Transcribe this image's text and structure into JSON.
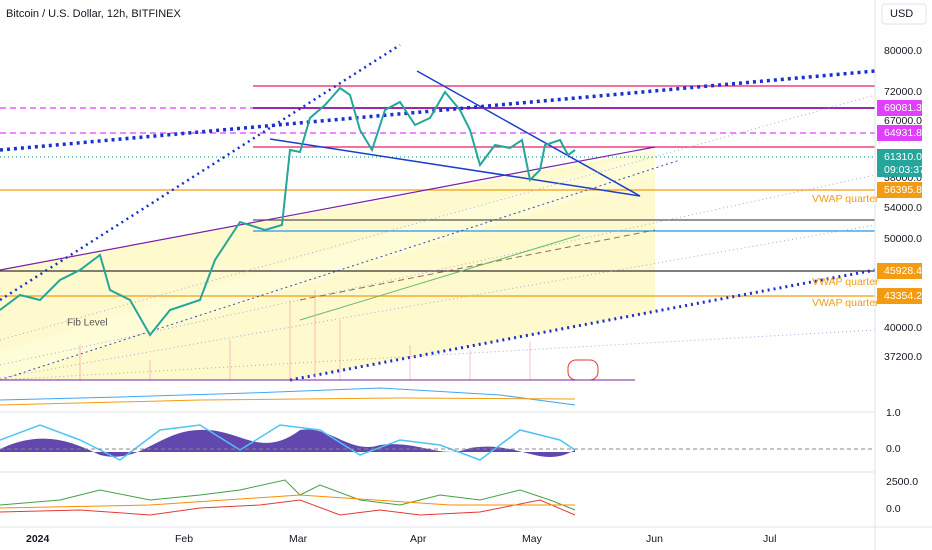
{
  "header": {
    "title": "Bitcoin / U.S. Dollar, 12h, BITFINEX",
    "currency": "USD"
  },
  "price_axis": {
    "labels": [
      "80000.0",
      "72000.0",
      "67000.0",
      "58000.0",
      "54000.0",
      "50000.0",
      "40000.0",
      "37200.0"
    ]
  },
  "price_tags": [
    {
      "label": "69081.3"
    },
    {
      "label": "64931.8"
    },
    {
      "label": "61310.0",
      "sub": "09:03:37"
    },
    {
      "label": "56395.8"
    },
    {
      "label": "45928.4"
    },
    {
      "label": "43354.2"
    }
  ],
  "annotations": [
    "VWAP quarter",
    "VWAP quarter",
    "VWAP quarter",
    "Fib Level"
  ],
  "panes": {
    "labels": [
      "1.0",
      "0.0",
      "2500.0",
      "0.0"
    ]
  },
  "time_axis": {
    "labels": [
      "2024",
      "Feb",
      "Mar",
      "Apr",
      "May",
      "Jun",
      "Jul"
    ]
  }
}
